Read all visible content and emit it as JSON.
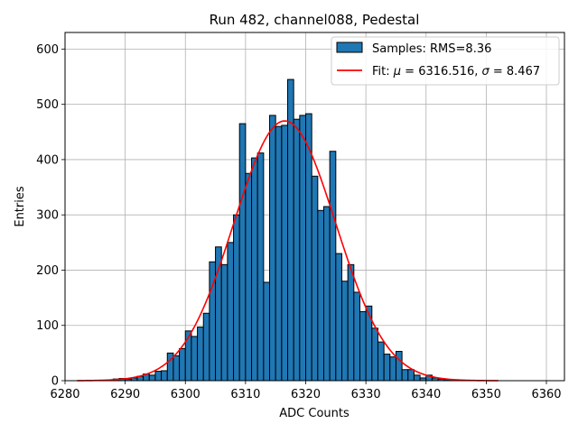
{
  "chart_data": {
    "type": "bar",
    "title": "Run 482, channel088, Pedestal",
    "xlabel": "ADC Counts",
    "ylabel": "Entries",
    "xlim": [
      6280,
      6363
    ],
    "ylim": [
      0,
      630
    ],
    "xticks": [
      6280,
      6290,
      6300,
      6310,
      6320,
      6330,
      6340,
      6350,
      6360
    ],
    "yticks": [
      0,
      100,
      200,
      300,
      400,
      500,
      600
    ],
    "grid": true,
    "legend_position": "top-right",
    "colors": {
      "bars": "#1f77b4",
      "bar_edge": "#000000",
      "fit": "#ff0000"
    },
    "histogram": {
      "name": "Samples: RMS=8.36",
      "bin_width": 1,
      "bins": [
        [
          6288,
          3
        ],
        [
          6289,
          4
        ],
        [
          6290,
          3
        ],
        [
          6291,
          5
        ],
        [
          6292,
          8
        ],
        [
          6293,
          12
        ],
        [
          6294,
          10
        ],
        [
          6295,
          17
        ],
        [
          6296,
          18
        ],
        [
          6297,
          50
        ],
        [
          6298,
          45
        ],
        [
          6299,
          58
        ],
        [
          6300,
          90
        ],
        [
          6301,
          80
        ],
        [
          6302,
          97
        ],
        [
          6303,
          122
        ],
        [
          6304,
          215
        ],
        [
          6305,
          242
        ],
        [
          6306,
          210
        ],
        [
          6307,
          250
        ],
        [
          6308,
          300
        ],
        [
          6309,
          465
        ],
        [
          6310,
          375
        ],
        [
          6311,
          403
        ],
        [
          6312,
          412
        ],
        [
          6313,
          178
        ],
        [
          6314,
          480
        ],
        [
          6315,
          460
        ],
        [
          6316,
          462
        ],
        [
          6317,
          545
        ],
        [
          6318,
          473
        ],
        [
          6319,
          480
        ],
        [
          6320,
          483
        ],
        [
          6321,
          370
        ],
        [
          6322,
          308
        ],
        [
          6323,
          315
        ],
        [
          6324,
          415
        ],
        [
          6325,
          230
        ],
        [
          6326,
          180
        ],
        [
          6327,
          210
        ],
        [
          6328,
          160
        ],
        [
          6329,
          125
        ],
        [
          6330,
          135
        ],
        [
          6331,
          95
        ],
        [
          6332,
          70
        ],
        [
          6333,
          48
        ],
        [
          6334,
          43
        ],
        [
          6335,
          53
        ],
        [
          6336,
          20
        ],
        [
          6337,
          20
        ],
        [
          6338,
          10
        ],
        [
          6339,
          5
        ],
        [
          6340,
          10
        ],
        [
          6341,
          5
        ],
        [
          6342,
          3
        ],
        [
          6343,
          2
        ]
      ]
    },
    "fit": {
      "name": "Fit: μ = 6316.516, σ = 8.467",
      "label_prefix": "Fit: ",
      "mu_symbol": "μ",
      "mu_text": " = 6316.516, ",
      "sigma_symbol": "σ",
      "sigma_text": " = 8.467",
      "mu": 6316.516,
      "sigma": 8.467,
      "amplitude": 470,
      "x_range": [
        6282,
        6352
      ]
    }
  }
}
